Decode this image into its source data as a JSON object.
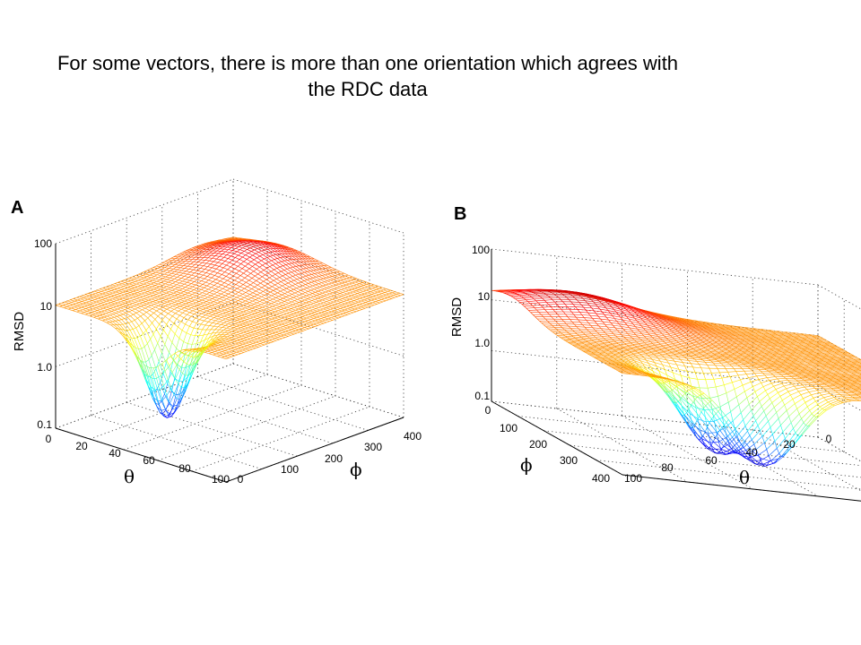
{
  "title": "For some vectors, there is more than one orientation which agrees with the RDC data",
  "chart_data": [
    {
      "type": "surface",
      "panel_label": "A",
      "zlabel": "RMSD",
      "zscale": "log",
      "zlim": [
        0.1,
        100
      ],
      "z_ticks": [
        "0.1",
        "1.0",
        "10",
        "100"
      ],
      "theta_label": "θ",
      "phi_label": "ϕ",
      "theta_lim": [
        0,
        100
      ],
      "phi_lim": [
        0,
        400
      ],
      "theta_ticks": [
        "0",
        "20",
        "40",
        "60",
        "80",
        "100"
      ],
      "phi_ticks": [
        "0",
        "100",
        "200",
        "300",
        "400"
      ],
      "grid": true,
      "colormap": "jet",
      "view": "theta axis front-left, phi axis front-right",
      "features": {
        "plateau_level": 10,
        "minima": [
          {
            "theta": 55,
            "phi": 40,
            "rmsd": 0.35
          }
        ],
        "maxima": [
          {
            "theta": 30,
            "phi": 320,
            "rmsd": 25
          }
        ]
      }
    },
    {
      "type": "surface",
      "panel_label": "B",
      "zlabel": "RMSD",
      "zscale": "log",
      "zlim": [
        0.1,
        100
      ],
      "z_ticks": [
        "0.1",
        "1.0",
        "10",
        "100"
      ],
      "theta_label": "θ",
      "phi_label": "ϕ",
      "theta_lim": [
        0,
        100
      ],
      "phi_lim": [
        0,
        400
      ],
      "theta_ticks": [
        "100",
        "80",
        "60",
        "40",
        "20",
        "0"
      ],
      "phi_ticks": [
        "0",
        "100",
        "200",
        "300",
        "400"
      ],
      "grid": true,
      "colormap": "jet",
      "view": "phi axis front-left, theta axis front-right",
      "features": {
        "plateau_level": 10,
        "minima": [
          {
            "theta": 65,
            "phi": 330,
            "rmsd": 0.35
          },
          {
            "theta": 55,
            "phi": 390,
            "rmsd": 0.35
          }
        ],
        "maxima": [
          {
            "theta": 80,
            "phi": 60,
            "rmsd": 30
          }
        ]
      }
    }
  ]
}
